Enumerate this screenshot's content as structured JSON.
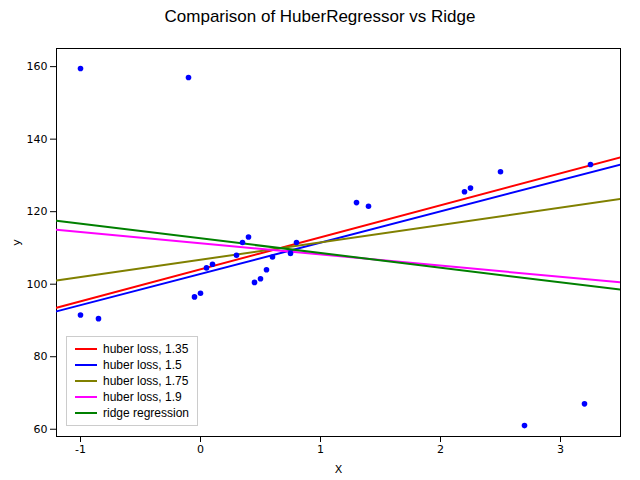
{
  "chart_data": {
    "type": "line",
    "title": "Comparison of HuberRegressor vs Ridge",
    "xlabel": "X",
    "ylabel": "y",
    "xlim": [
      -1.2,
      3.5
    ],
    "ylim": [
      58,
      165
    ],
    "xticks": [
      -1,
      0,
      1,
      2,
      3
    ],
    "yticks": [
      60,
      80,
      100,
      120,
      140,
      160
    ],
    "grid": false,
    "legend": "lower left",
    "series": [
      {
        "type": "scatter",
        "color": "blue",
        "x": [
          -1.0,
          -1.0,
          -0.85,
          -0.1,
          -0.05,
          0.0,
          0.05,
          0.1,
          0.3,
          0.35,
          0.4,
          0.45,
          0.5,
          0.55,
          0.6,
          0.75,
          0.8,
          1.3,
          1.4,
          2.2,
          2.25,
          2.5,
          2.7,
          3.2,
          3.25
        ],
        "values": [
          91.5,
          159.5,
          90.5,
          157.0,
          96.5,
          97.5,
          104.5,
          105.5,
          108.0,
          111.5,
          113.0,
          100.5,
          101.5,
          104.0,
          107.5,
          108.5,
          111.5,
          122.5,
          121.5,
          125.5,
          126.5,
          131.0,
          61.0,
          67.0,
          133.0
        ]
      },
      {
        "type": "line",
        "name": "huber loss, 1.35",
        "color": "red",
        "x": [
          -1.2,
          3.5
        ],
        "values": [
          93.5,
          135.0
        ]
      },
      {
        "type": "line",
        "name": "huber loss, 1.5",
        "color": "blue",
        "x": [
          -1.2,
          3.5
        ],
        "values": [
          92.5,
          133.0
        ]
      },
      {
        "type": "line",
        "name": "huber loss, 1.75",
        "color": "olive",
        "x": [
          -1.2,
          3.5
        ],
        "values": [
          101.0,
          123.5
        ]
      },
      {
        "type": "line",
        "name": "huber loss, 1.9",
        "color": "magenta",
        "x": [
          -1.2,
          3.5
        ],
        "values": [
          115.0,
          100.5
        ]
      },
      {
        "type": "line",
        "name": "ridge regression",
        "color": "green",
        "x": [
          -1.2,
          3.5
        ],
        "values": [
          117.5,
          98.5
        ]
      }
    ]
  }
}
